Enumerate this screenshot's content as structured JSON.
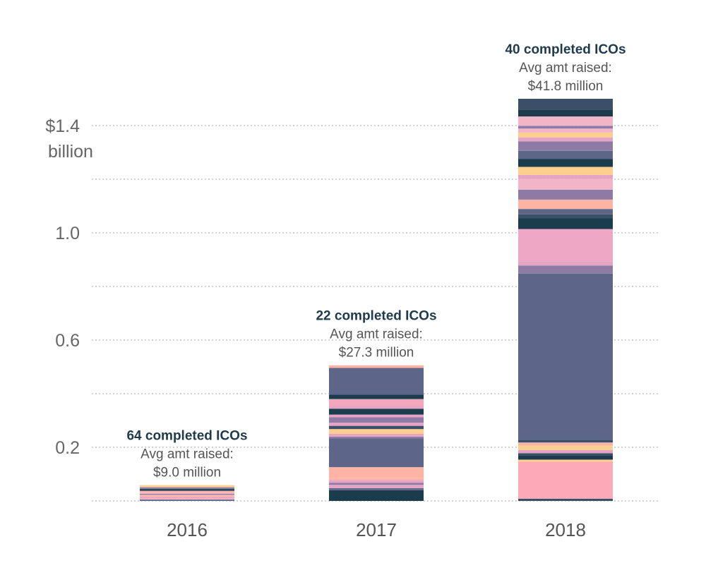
{
  "chart_data": {
    "type": "bar",
    "stacked": true,
    "title": "",
    "xlabel": "",
    "ylabel": "",
    "ylim": [
      0,
      1.55
    ],
    "y_ticks": [
      {
        "value": 1.4,
        "label": "$1.4",
        "label2": "billion"
      },
      {
        "value": 1.0,
        "label": "1.0",
        "label2": ""
      },
      {
        "value": 0.6,
        "label": "0.6",
        "label2": ""
      },
      {
        "value": 0.2,
        "label": "0.2",
        "label2": ""
      }
    ],
    "gridlines": [
      0,
      0.2,
      0.4,
      0.6,
      0.8,
      1.0,
      1.2,
      1.4
    ],
    "categories": [
      "2016",
      "2017",
      "2018"
    ],
    "annotations": [
      {
        "category": "2016",
        "title": "64 completed ICOs",
        "line1": "Avg amt raised:",
        "line2": "$9.0 million"
      },
      {
        "category": "2017",
        "title": "22 completed ICOs",
        "line1": "Avg amt raised:",
        "line2": "$27.3 million"
      },
      {
        "category": "2018",
        "title": "40 completed ICOs",
        "line1": "Avg amt raised:",
        "line2": "$41.8 million"
      }
    ],
    "segments": {
      "2016": [
        {
          "value": 0.005,
          "color": "#5d6688"
        },
        {
          "value": 0.004,
          "color": "#f2b5c8"
        },
        {
          "value": 0.006,
          "color": "#e6a3c3"
        },
        {
          "value": 0.008,
          "color": "#fdb4a4"
        },
        {
          "value": 0.004,
          "color": "#8d7ba6"
        },
        {
          "value": 0.004,
          "color": "#f2b5c8"
        },
        {
          "value": 0.006,
          "color": "#fdb4a4"
        },
        {
          "value": 0.004,
          "color": "#3b5068"
        },
        {
          "value": 0.004,
          "color": "#1a3c4c"
        },
        {
          "value": 0.006,
          "color": "#8d7ba6"
        },
        {
          "value": 0.008,
          "color": "#fdcf8e"
        }
      ],
      "2017": [
        {
          "value": 0.04,
          "color": "#1a3c4c"
        },
        {
          "value": 0.008,
          "color": "#5d6688"
        },
        {
          "value": 0.012,
          "color": "#e6a3c3"
        },
        {
          "value": 0.008,
          "color": "#8d7ba6"
        },
        {
          "value": 0.01,
          "color": "#e6a3c3"
        },
        {
          "value": 0.008,
          "color": "#fdb4a4"
        },
        {
          "value": 0.04,
          "color": "#fdb4a4"
        },
        {
          "value": 0.107,
          "color": "#5d6688"
        },
        {
          "value": 0.007,
          "color": "#8d7ba6"
        },
        {
          "value": 0.01,
          "color": "#e6a3c3"
        },
        {
          "value": 0.018,
          "color": "#fdcf8e"
        },
        {
          "value": 0.012,
          "color": "#3b5068"
        },
        {
          "value": 0.012,
          "color": "#e6a3c3"
        },
        {
          "value": 0.02,
          "color": "#8d7ba6"
        },
        {
          "value": 0.01,
          "color": "#e6a3c3"
        },
        {
          "value": 0.022,
          "color": "#1a3c4c"
        },
        {
          "value": 0.01,
          "color": "#e6a3c3"
        },
        {
          "value": 0.026,
          "color": "#f2a7bc"
        },
        {
          "value": 0.016,
          "color": "#1a3c4c"
        },
        {
          "value": 0.1,
          "color": "#5d6688"
        },
        {
          "value": 0.01,
          "color": "#fdb4a4"
        }
      ],
      "2018": [
        {
          "value": 0.008,
          "color": "#3b5068"
        },
        {
          "value": 0.138,
          "color": "#fdaab8"
        },
        {
          "value": 0.008,
          "color": "#fdcf8e"
        },
        {
          "value": 0.016,
          "color": "#1a3c4c"
        },
        {
          "value": 0.008,
          "color": "#3b5068"
        },
        {
          "value": 0.012,
          "color": "#e6a3c3"
        },
        {
          "value": 0.016,
          "color": "#fdcf8e"
        },
        {
          "value": 0.012,
          "color": "#fdb4a4"
        },
        {
          "value": 0.01,
          "color": "#3b5068"
        },
        {
          "value": 0.62,
          "color": "#5d6688"
        },
        {
          "value": 0.03,
          "color": "#8d7ba6"
        },
        {
          "value": 0.016,
          "color": "#e6a3c3"
        },
        {
          "value": 0.12,
          "color": "#eea8c6"
        },
        {
          "value": 0.04,
          "color": "#1a3c4c"
        },
        {
          "value": 0.015,
          "color": "#3b5068"
        },
        {
          "value": 0.02,
          "color": "#5d6688"
        },
        {
          "value": 0.035,
          "color": "#fdb4a4"
        },
        {
          "value": 0.037,
          "color": "#8d7ba6"
        },
        {
          "value": 0.04,
          "color": "#f2b5c8"
        },
        {
          "value": 0.015,
          "color": "#e6a3c3"
        },
        {
          "value": 0.03,
          "color": "#fdcf8e"
        },
        {
          "value": 0.03,
          "color": "#1a3c4c"
        },
        {
          "value": 0.03,
          "color": "#5d6688"
        },
        {
          "value": 0.035,
          "color": "#8d7ba6"
        },
        {
          "value": 0.015,
          "color": "#e6a3c3"
        },
        {
          "value": 0.018,
          "color": "#fdcf8e"
        },
        {
          "value": 0.015,
          "color": "#f2b5c8"
        },
        {
          "value": 0.01,
          "color": "#8d7ba6"
        },
        {
          "value": 0.035,
          "color": "#f2b5c8"
        },
        {
          "value": 0.025,
          "color": "#1a3c4c"
        },
        {
          "value": 0.041,
          "color": "#3b5068"
        }
      ]
    }
  }
}
